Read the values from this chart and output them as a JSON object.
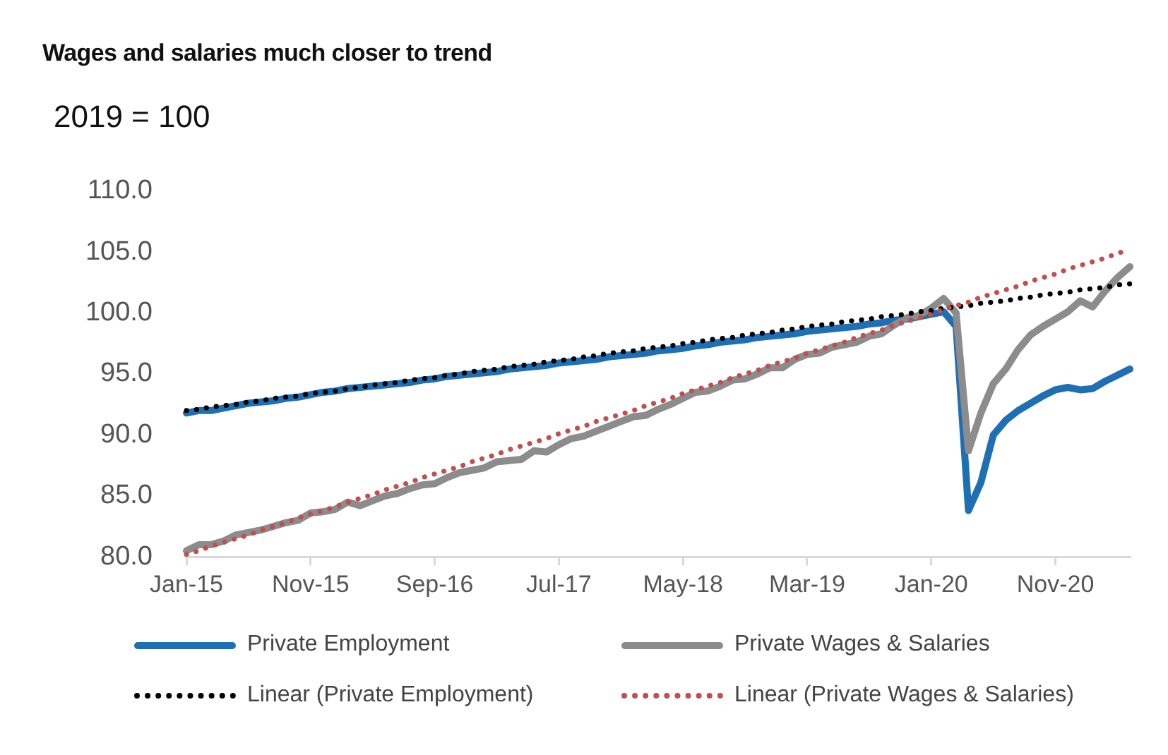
{
  "chart_data": {
    "type": "line",
    "title": "Wages and salaries much closer to trend",
    "ylabel": "2019 = 100",
    "categories": [
      "Jan-15",
      null,
      null,
      null,
      null,
      null,
      null,
      null,
      null,
      null,
      "Nov-15",
      null,
      null,
      null,
      null,
      null,
      null,
      null,
      null,
      null,
      "Sep-16",
      null,
      null,
      null,
      null,
      null,
      null,
      null,
      null,
      null,
      "Jul-17",
      null,
      null,
      null,
      null,
      null,
      null,
      null,
      null,
      null,
      "May-18",
      null,
      null,
      null,
      null,
      null,
      null,
      null,
      null,
      null,
      "Mar-19",
      null,
      null,
      null,
      null,
      null,
      null,
      null,
      null,
      null,
      "Jan-20",
      null,
      null,
      null,
      null,
      null,
      null,
      null,
      null,
      null,
      "Nov-20",
      null,
      null,
      null,
      null,
      null,
      null
    ],
    "ylim": [
      80,
      110
    ],
    "yticks": [
      {
        "value": 80,
        "label": "80.0"
      },
      {
        "value": 85,
        "label": "85.0"
      },
      {
        "value": 90,
        "label": "90.0"
      },
      {
        "value": 95,
        "label": "95.0"
      },
      {
        "value": 100,
        "label": "100.0"
      },
      {
        "value": 105,
        "label": "105.0"
      },
      {
        "value": 110,
        "label": "110.0"
      }
    ],
    "grid": false,
    "legend": "bottom",
    "marker": "none",
    "series": [
      {
        "name": "Private Employment",
        "color": "#1f6fb4",
        "line_style": "solid",
        "values": [
          91.8,
          92.0,
          92.0,
          92.2,
          92.4,
          92.6,
          92.7,
          92.8,
          93.0,
          93.1,
          93.3,
          93.5,
          93.6,
          93.8,
          93.9,
          94.0,
          94.1,
          94.2,
          94.3,
          94.5,
          94.6,
          94.8,
          94.9,
          95.0,
          95.1,
          95.2,
          95.4,
          95.5,
          95.6,
          95.7,
          95.9,
          96.0,
          96.1,
          96.2,
          96.4,
          96.5,
          96.6,
          96.7,
          96.9,
          97.0,
          97.1,
          97.3,
          97.4,
          97.6,
          97.7,
          97.8,
          98.0,
          98.1,
          98.2,
          98.3,
          98.5,
          98.6,
          98.7,
          98.8,
          98.9,
          99.1,
          99.2,
          99.4,
          99.5,
          99.7,
          99.9,
          100.1,
          98.9,
          83.8,
          86.1,
          90.0,
          91.2,
          92.0,
          92.6,
          93.2,
          93.7,
          93.9,
          93.7,
          93.8,
          94.4,
          94.9,
          95.4
        ]
      },
      {
        "name": "Private Wages & Salaries",
        "color": "#8c8c8c",
        "line_style": "solid",
        "values": [
          80.5,
          81.0,
          81.0,
          81.3,
          81.8,
          82.0,
          82.2,
          82.5,
          82.8,
          83.0,
          83.6,
          83.7,
          83.9,
          84.5,
          84.2,
          84.6,
          85.0,
          85.2,
          85.6,
          85.9,
          86.0,
          86.5,
          86.9,
          87.1,
          87.3,
          87.8,
          87.9,
          88.0,
          88.7,
          88.6,
          89.2,
          89.7,
          89.9,
          90.3,
          90.7,
          91.1,
          91.5,
          91.6,
          92.1,
          92.5,
          93.0,
          93.5,
          93.6,
          94.0,
          94.5,
          94.6,
          95.0,
          95.5,
          95.5,
          96.2,
          96.6,
          96.7,
          97.2,
          97.4,
          97.6,
          98.1,
          98.3,
          99.0,
          99.6,
          99.8,
          100.4,
          101.2,
          100.0,
          88.7,
          91.8,
          94.2,
          95.4,
          97.0,
          98.2,
          98.9,
          99.5,
          100.1,
          101.0,
          100.5,
          101.8,
          102.9,
          103.8
        ]
      },
      {
        "name": "Linear (Private Employment)",
        "color": "#000000",
        "line_style": "dotted",
        "values": [
          92.0,
          92.1,
          92.3,
          92.4,
          92.5,
          92.7,
          92.8,
          93.0,
          93.1,
          93.2,
          93.4,
          93.5,
          93.6,
          93.8,
          93.9,
          94.1,
          94.2,
          94.3,
          94.5,
          94.6,
          94.7,
          94.9,
          95.0,
          95.2,
          95.3,
          95.4,
          95.6,
          95.7,
          95.8,
          96.0,
          96.1,
          96.2,
          96.4,
          96.5,
          96.7,
          96.8,
          96.9,
          97.1,
          97.2,
          97.3,
          97.5,
          97.6,
          97.8,
          97.9,
          98.0,
          98.2,
          98.3,
          98.4,
          98.6,
          98.7,
          98.9,
          99.0,
          99.1,
          99.3,
          99.4,
          99.5,
          99.7,
          99.8,
          99.9,
          100.1,
          100.2,
          100.4,
          100.5,
          100.6,
          100.8,
          100.9,
          101.0,
          101.2,
          101.3,
          101.5,
          101.6,
          101.7,
          101.9,
          102.0,
          102.1,
          102.3,
          102.4
        ]
      },
      {
        "name": "Linear (Private Wages & Salaries)",
        "color": "#c0504d",
        "line_style": "dotted",
        "values": [
          80.2,
          80.5,
          80.9,
          81.2,
          81.5,
          81.8,
          82.2,
          82.5,
          82.8,
          83.2,
          83.5,
          83.8,
          84.1,
          84.5,
          84.8,
          85.1,
          85.5,
          85.8,
          86.1,
          86.5,
          86.8,
          87.1,
          87.4,
          87.8,
          88.1,
          88.4,
          88.8,
          89.1,
          89.4,
          89.7,
          90.1,
          90.4,
          90.7,
          91.1,
          91.4,
          91.7,
          92.0,
          92.4,
          92.7,
          93.0,
          93.4,
          93.7,
          94.0,
          94.3,
          94.7,
          95.0,
          95.3,
          95.7,
          96.0,
          96.3,
          96.7,
          97.0,
          97.3,
          97.6,
          98.0,
          98.3,
          98.6,
          99.0,
          99.3,
          99.6,
          99.9,
          100.3,
          100.6,
          100.9,
          101.3,
          101.6,
          101.9,
          102.2,
          102.6,
          102.9,
          103.2,
          103.6,
          103.9,
          104.2,
          104.5,
          104.9,
          105.2
        ]
      }
    ]
  }
}
